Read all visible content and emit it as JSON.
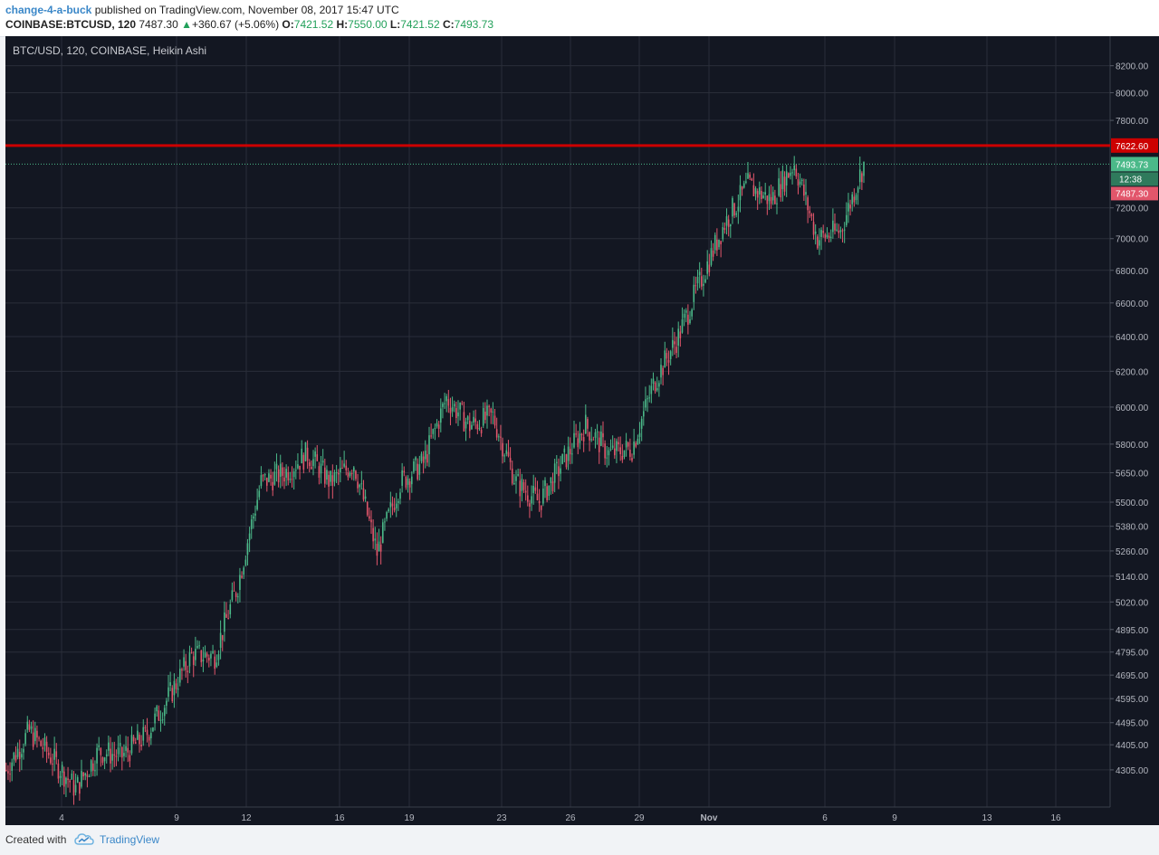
{
  "header": {
    "author": "change-4-a-buck",
    "published_text": " published on TradingView.com, November 08, 2017 15:47 UTC",
    "symbol": "COINBASE:BTCUSD, 120",
    "last": "7487.30",
    "change": "+360.67 (+5.06%)",
    "o_label": "O:",
    "o_value": "7421.52",
    "h_label": "H:",
    "h_value": "7550.00",
    "l_label": "L:",
    "l_value": "7421.52",
    "c_label": "C:",
    "c_value": "7493.73"
  },
  "footer": {
    "created_with": "Created with",
    "brand": "TradingView"
  },
  "colors": {
    "background": "#131722",
    "grid": "#2a2e39",
    "up": "#4bb989",
    "down": "#e2566b",
    "resistance": "#cc0000",
    "axis_text": "#b2b5be"
  },
  "chart_data": {
    "type": "candlestick",
    "title": "BTC/USD, 120, COINBASE, Heikin Ashi",
    "x_ticks": [
      "4",
      "9",
      "12",
      "16",
      "19",
      "23",
      "26",
      "29",
      "Nov",
      "6",
      "9",
      "13",
      "16"
    ],
    "y_ticks": [
      "8200.00",
      "8000.00",
      "7800.00",
      "7200.00",
      "7000.00",
      "6800.00",
      "6600.00",
      "6400.00",
      "6200.00",
      "6000.00",
      "5800.00",
      "5650.00",
      "5500.00",
      "5380.00",
      "5260.00",
      "5140.00",
      "5020.00",
      "4895.00",
      "4795.00",
      "4695.00",
      "4595.00",
      "4495.00",
      "4405.00",
      "4305.00"
    ],
    "y_tick_values": [
      8200,
      8000,
      7800,
      7200,
      7000,
      6800,
      6600,
      6400,
      6200,
      6000,
      5800,
      5650,
      5500,
      5380,
      5260,
      5140,
      5020,
      4895,
      4795,
      4695,
      4595,
      4495,
      4405,
      4305
    ],
    "y_scale": "log",
    "ylim": [
      4220,
      8300
    ],
    "resistance": {
      "value": 7622.6,
      "label": "7622.60"
    },
    "last_price": {
      "value": 7493.73,
      "label": "7493.73"
    },
    "countdown": {
      "label": "12:38"
    },
    "prev_close": {
      "value": 7487.3,
      "label": "7487.30"
    },
    "price_path": [
      {
        "date": "Oct 2",
        "price": 4305
      },
      {
        "date": "Oct 3",
        "price": 4460
      },
      {
        "date": "Oct 4",
        "price": 4350
      },
      {
        "date": "Oct 5",
        "price": 4230
      },
      {
        "date": "Oct 6",
        "price": 4380
      },
      {
        "date": "Oct 7",
        "price": 4360
      },
      {
        "date": "Oct 8",
        "price": 4440
      },
      {
        "date": "Oct 9",
        "price": 4600
      },
      {
        "date": "Oct 10",
        "price": 4780
      },
      {
        "date": "Oct 11",
        "price": 4780
      },
      {
        "date": "Oct 12",
        "price": 5100
      },
      {
        "date": "Oct 13",
        "price": 5600
      },
      {
        "date": "Oct 14",
        "price": 5650
      },
      {
        "date": "Oct 15",
        "price": 5750
      },
      {
        "date": "Oct 16",
        "price": 5600
      },
      {
        "date": "Oct 17",
        "price": 5700
      },
      {
        "date": "Oct 18",
        "price": 5250
      },
      {
        "date": "Oct 19",
        "price": 5600
      },
      {
        "date": "Oct 20",
        "price": 5700
      },
      {
        "date": "Oct 21",
        "price": 6050
      },
      {
        "date": "Oct 22",
        "price": 5900
      },
      {
        "date": "Oct 23",
        "price": 5950
      },
      {
        "date": "Oct 24",
        "price": 5600
      },
      {
        "date": "Oct 25",
        "price": 5500
      },
      {
        "date": "Oct 26",
        "price": 5700
      },
      {
        "date": "Oct 27",
        "price": 5900
      },
      {
        "date": "Oct 28",
        "price": 5750
      },
      {
        "date": "Oct 29",
        "price": 5780
      },
      {
        "date": "Oct 30",
        "price": 6150
      },
      {
        "date": "Oct 31",
        "price": 6400
      },
      {
        "date": "Nov 1",
        "price": 6750
      },
      {
        "date": "Nov 2",
        "price": 7100
      },
      {
        "date": "Nov 3",
        "price": 7350
      },
      {
        "date": "Nov 4",
        "price": 7250
      },
      {
        "date": "Nov 5",
        "price": 7500
      },
      {
        "date": "Nov 6",
        "price": 7000
      },
      {
        "date": "Nov 7",
        "price": 7050
      },
      {
        "date": "Nov 8",
        "price": 7494
      }
    ]
  }
}
